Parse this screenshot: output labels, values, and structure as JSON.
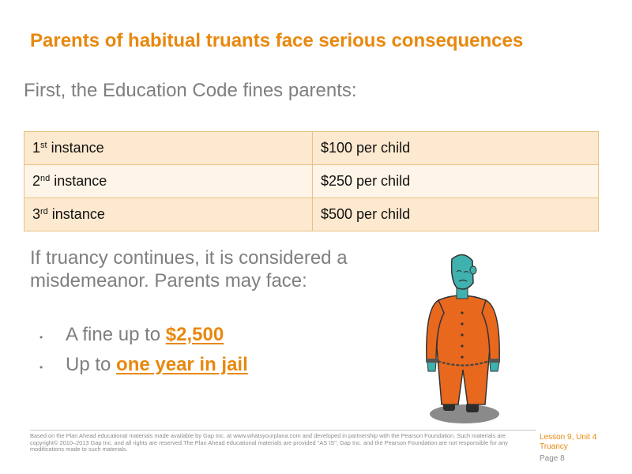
{
  "slide": {
    "title": "Parents of habitual truants face serious consequences",
    "intro": "First, the Education Code fines parents:"
  },
  "fines_table": {
    "rows": [
      {
        "ordinal": "1",
        "suffix": "st",
        "word": " instance",
        "amount": "$100 per child"
      },
      {
        "ordinal": "2",
        "suffix": "nd",
        "word": " instance",
        "amount": "$250 per child"
      },
      {
        "ordinal": "3",
        "suffix": "rd",
        "word": " instance",
        "amount": "$500 per child"
      }
    ]
  },
  "paragraph": "If truancy continues, it is considered a misdemeanor. Parents may face:",
  "bullets": [
    {
      "prefix": "A fine up to ",
      "highlight": "$2,500"
    },
    {
      "prefix": "Up to ",
      "highlight": "one year in jail"
    }
  ],
  "bullet_glyph": "•",
  "illustration": {
    "icon": "prisoner-in-chains-icon"
  },
  "footer": {
    "note": "Based on the Plan Ahead educational materials made available by Gap Inc. at www.whatsyourplana.com and developed in partnership with the Pearson Foundation. Such materials are copyright© 2010–2013 Gap Inc. and all rights are reserved.The Plan Ahead educational materials are provided \"AS IS\"; Gap Inc. and the Pearson Foundation are not responsible for any modifications made to such materials.",
    "lesson": "Lesson 9, Unit 4",
    "topic": "Truancy",
    "page_label": "Page",
    "page_number": "8"
  },
  "colors": {
    "accent": "#e8880f",
    "body_text": "#7f7f7f",
    "table_row": "#fde9cf",
    "table_row_alt": "#fef4e7",
    "prisoner_suit": "#e8681e",
    "prisoner_skin": "#3fb1ae"
  }
}
